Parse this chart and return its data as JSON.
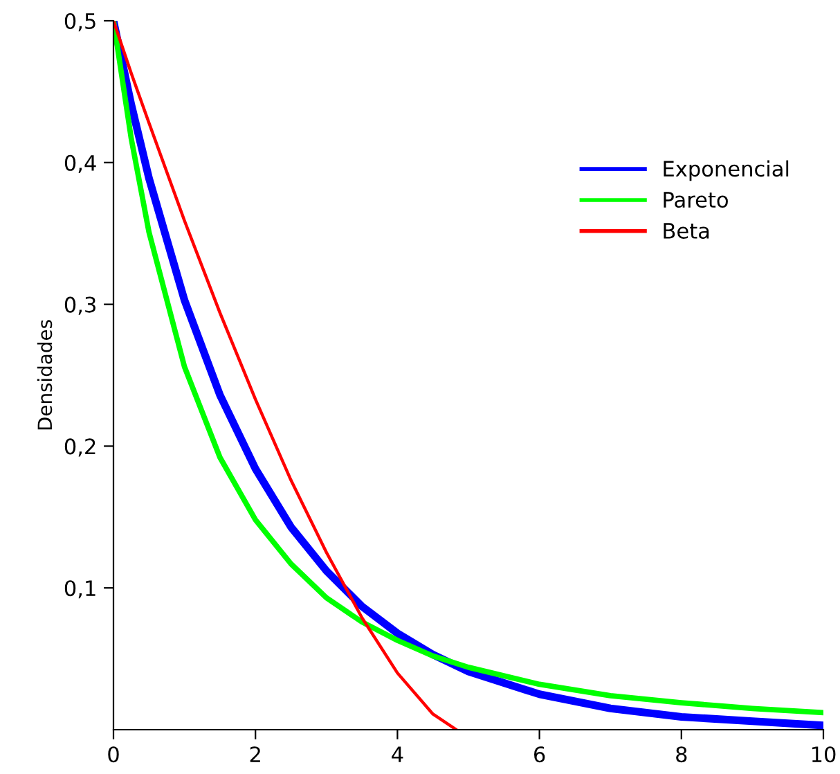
{
  "chart_data": {
    "type": "line",
    "ylabel": "Densidades",
    "xlim": [
      0,
      10
    ],
    "ylim": [
      0,
      0.5
    ],
    "xticks": [
      0,
      2,
      4,
      6,
      8,
      10
    ],
    "yticks": [
      {
        "value": 0.1,
        "label": "0,1"
      },
      {
        "value": 0.2,
        "label": "0,2"
      },
      {
        "value": 0.3,
        "label": "0,3"
      },
      {
        "value": 0.4,
        "label": "0,4"
      },
      {
        "value": 0.5,
        "label": "0,5"
      }
    ],
    "grid": false,
    "legend": "top right",
    "marker": "none",
    "line_style": "solid",
    "series": [
      {
        "name": "Exponencial",
        "color": "#0000ff",
        "x": [
          0,
          0.25,
          0.5,
          1,
          1.5,
          2,
          2.5,
          3,
          3.5,
          4,
          4.5,
          5,
          6,
          7,
          8,
          9,
          10
        ],
        "values": [
          0.5,
          0.441,
          0.389,
          0.303,
          0.236,
          0.184,
          0.143,
          0.112,
          0.087,
          0.068,
          0.053,
          0.041,
          0.025,
          0.015,
          0.009,
          0.006,
          0.003
        ]
      },
      {
        "name": "Pareto",
        "color": "#00ff00",
        "x": [
          0,
          0.25,
          0.5,
          1,
          1.5,
          2,
          2.5,
          3,
          3.5,
          4,
          4.5,
          5,
          6,
          7,
          8,
          9,
          10
        ],
        "values": [
          0.5,
          0.417,
          0.351,
          0.256,
          0.192,
          0.148,
          0.117,
          0.093,
          0.076,
          0.063,
          0.052,
          0.044,
          0.032,
          0.024,
          0.019,
          0.015,
          0.012
        ]
      },
      {
        "name": "Beta",
        "color": "#ff0000",
        "x": [
          0,
          0.25,
          0.5,
          1,
          1.5,
          2,
          2.5,
          3,
          3.5,
          4,
          4.5,
          4.83
        ],
        "values": [
          0.5,
          0.463,
          0.428,
          0.359,
          0.294,
          0.233,
          0.176,
          0.125,
          0.079,
          0.04,
          0.011,
          0
        ]
      }
    ]
  }
}
